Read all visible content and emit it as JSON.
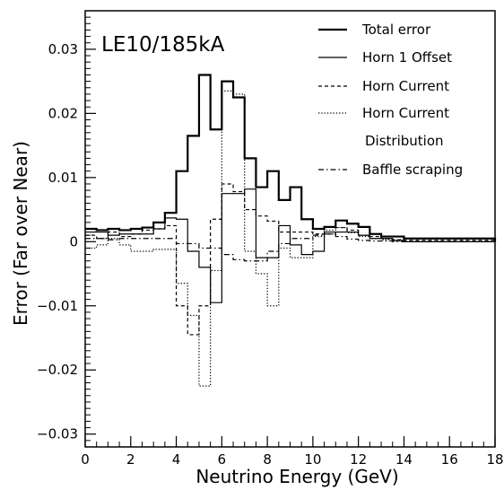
{
  "chart_data": {
    "type": "line",
    "step": true,
    "annotation": "LE10/185kA",
    "xlabel": "Neutrino Energy (GeV)",
    "ylabel": "Error (Far over Near)",
    "xlim": [
      0,
      18
    ],
    "ylim": [
      -0.032,
      0.036
    ],
    "xticks": [
      0,
      2,
      4,
      6,
      8,
      10,
      12,
      14,
      16,
      18
    ],
    "yticks": [
      -0.03,
      -0.02,
      -0.01,
      0,
      0.01,
      0.02,
      0.03
    ],
    "ytick_labels": [
      "−0.03",
      "−0.02",
      "−0.01",
      "0",
      "0.01",
      "0.02",
      "0.03"
    ],
    "grid": false,
    "legend_position": "top-right",
    "bin_edges": [
      0,
      0.5,
      1,
      1.5,
      2,
      2.5,
      3,
      3.5,
      4,
      4.5,
      5,
      5.5,
      6,
      6.5,
      7,
      7.5,
      8,
      8.5,
      9,
      9.5,
      10,
      10.5,
      11,
      11.5,
      12,
      12.5,
      13,
      13.5,
      14,
      18
    ],
    "series": [
      {
        "name": "Total error",
        "style": "solid-thick",
        "values": [
          0.002,
          0.0018,
          0.002,
          0.0018,
          0.002,
          0.0022,
          0.003,
          0.0045,
          0.011,
          0.0165,
          0.026,
          0.0175,
          0.025,
          0.0225,
          0.013,
          0.0085,
          0.011,
          0.0065,
          0.0085,
          0.0035,
          0.002,
          0.0023,
          0.0033,
          0.0028,
          0.0023,
          0.0012,
          0.0008,
          0.0008,
          0.0005,
          0
        ]
      },
      {
        "name": "Horn 1 Offset",
        "style": "solid-thin",
        "values": [
          0.0015,
          0.0015,
          0.001,
          0.0012,
          0.0012,
          0.0012,
          0.002,
          0.0037,
          0.0035,
          -0.0015,
          -0.004,
          -0.0095,
          0.0075,
          0.0075,
          0.0082,
          -0.0025,
          -0.0025,
          0.0025,
          -0.0005,
          -0.002,
          -0.0015,
          0.0015,
          0.0015,
          0.0015,
          0.001,
          0.0005,
          0.0005,
          0.0002,
          0,
          0
        ]
      },
      {
        "name": "Horn Current",
        "style": "dashed",
        "values": [
          0.001,
          0.0005,
          0.0015,
          0.0008,
          0.0012,
          0.0018,
          0.002,
          0.0025,
          -0.01,
          -0.0145,
          -0.01,
          0.0035,
          0.009,
          0.0078,
          0.005,
          0.004,
          0.0032,
          0.0015,
          0.0015,
          0.0015,
          0.0012,
          0.0012,
          0.0022,
          0.0018,
          0.001,
          0.0008,
          0.0005,
          0.0003,
          0.0002,
          0
        ]
      },
      {
        "name": "Horn Current Distribution",
        "legend_lines": [
          "Horn Current",
          "Distribution"
        ],
        "style": "dotted",
        "values": [
          -0.001,
          -0.0005,
          0.0005,
          -0.0005,
          -0.0015,
          -0.0015,
          -0.0012,
          -0.0012,
          -0.0065,
          -0.0115,
          -0.0225,
          -0.0045,
          0.0235,
          0.023,
          -0.0015,
          -0.005,
          -0.01,
          -0.001,
          -0.0025,
          -0.0025,
          0.0008,
          0.0018,
          0.0022,
          0.0014,
          0.0008,
          0.0005,
          0.0003,
          0.0001,
          0,
          0
        ]
      },
      {
        "name": "Baffle scraping",
        "style": "dashdot",
        "values": [
          0.0005,
          0.0005,
          0.0003,
          0.0005,
          0.0005,
          0.0005,
          0.0005,
          0.0005,
          -0.0003,
          -0.0003,
          -0.001,
          -0.001,
          -0.002,
          -0.0028,
          -0.003,
          -0.003,
          -0.0015,
          -0.0003,
          0.0005,
          0.0005,
          0.001,
          0.0012,
          0.0008,
          0.0004,
          0.0002,
          0.0001,
          0.0001,
          0,
          0,
          0
        ]
      }
    ]
  }
}
